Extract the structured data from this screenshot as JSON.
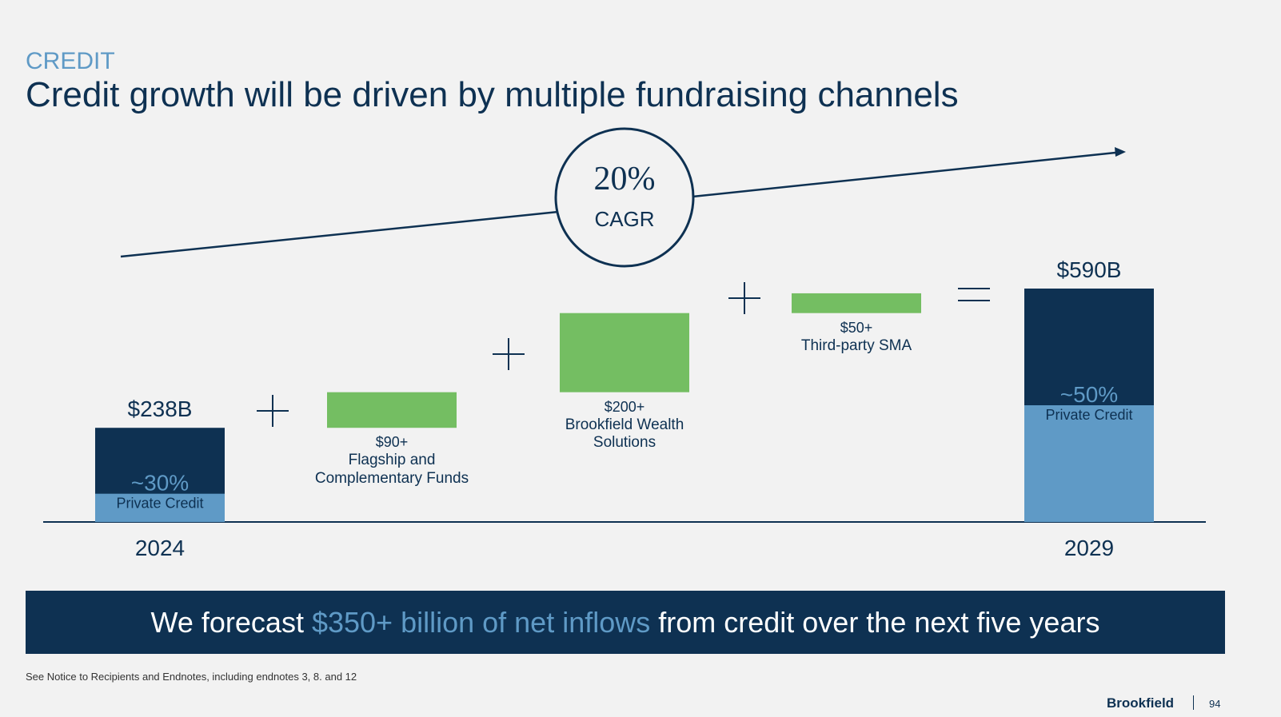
{
  "section": "CREDIT",
  "title": "Credit growth will be driven by multiple fundraising channels",
  "chart_data": {
    "type": "waterfall",
    "categories": [
      "2024",
      "Flagship and Complementary Funds",
      "Brookfield Wealth Solutions",
      "Third-party SMA",
      "2029"
    ],
    "values": [
      238,
      90,
      200,
      50,
      590
    ],
    "value_labels": [
      "$238B",
      "$90+",
      "$200+",
      "$50+",
      "$590B"
    ],
    "color": "#0e3152",
    "increment_color": "#74be62",
    "share": {
      "name": "Private Credit",
      "values": [
        30,
        null,
        null,
        null,
        50
      ],
      "value_labels": [
        "~30%",
        null,
        null,
        null,
        "~50%"
      ],
      "color": "#5f9ac6"
    },
    "cagr": "20%",
    "cagr_text": "CAGR"
  },
  "banner": {
    "before": "We forecast ",
    "highlight": "$350+ billion of net inflows",
    "after": " from credit over the next five years"
  },
  "footnote": "See Notice to Recipients and Endnotes, including endnotes 3, 8. and 12",
  "logo": "Brookfield",
  "page_number": "94"
}
